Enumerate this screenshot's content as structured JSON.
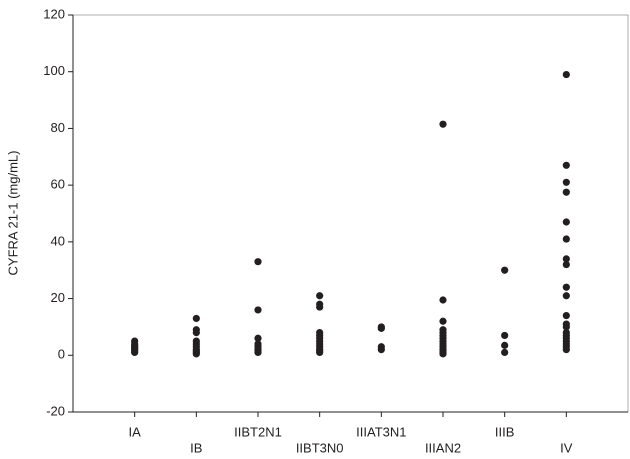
{
  "chart_data": {
    "type": "strip",
    "y_label": "CYFRA 21-1 (mg/mL)",
    "categories": [
      "IA",
      "IB",
      "IIBT2N1",
      "IIBT3N0",
      "IIIAT3N1",
      "IIIAN2",
      "IIIB",
      "IV"
    ],
    "values": [
      [
        1,
        1.5,
        2,
        2.5,
        3,
        3.5,
        4,
        5
      ],
      [
        0.5,
        1,
        1.5,
        2,
        3,
        4,
        5,
        8,
        9,
        13
      ],
      [
        1,
        1.5,
        2,
        3,
        4,
        6,
        16,
        33
      ],
      [
        1,
        1.5,
        2,
        3,
        4,
        5,
        6,
        7,
        8,
        17,
        18,
        21
      ],
      [
        2,
        3,
        9.5,
        10
      ],
      [
        0.5,
        1,
        1.5,
        2,
        3,
        4,
        5,
        6,
        7,
        8,
        9,
        12,
        19.5,
        81.5
      ],
      [
        1,
        3.5,
        7,
        30
      ],
      [
        2,
        3,
        4,
        5,
        6,
        7,
        8,
        10,
        11,
        14,
        21,
        24,
        32,
        34,
        41,
        47,
        57.5,
        61,
        67,
        99
      ]
    ],
    "color": "#231f20",
    "ylim": [
      -20,
      120
    ],
    "yticks": [
      -20,
      0,
      20,
      40,
      60,
      80,
      100,
      120
    ]
  }
}
